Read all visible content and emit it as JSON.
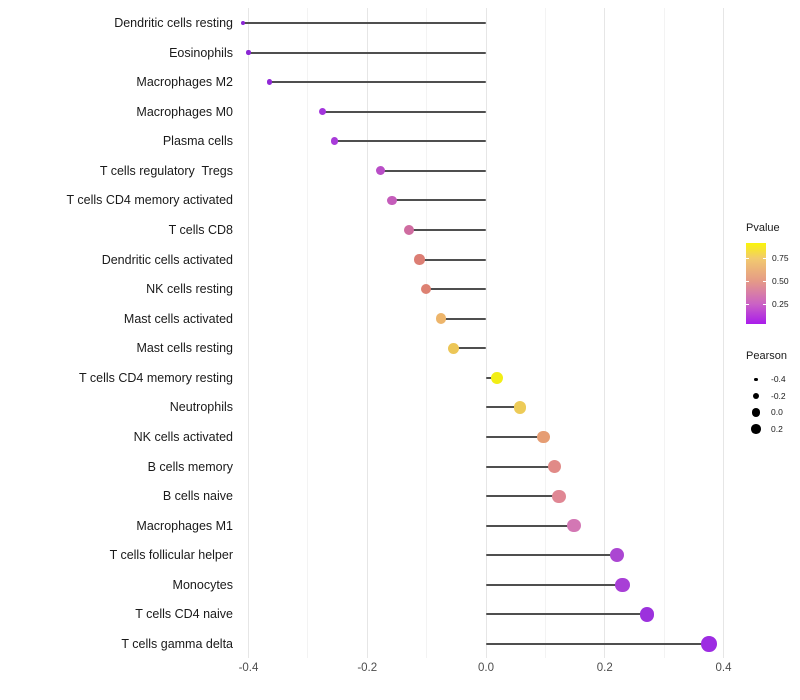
{
  "chart_data": {
    "type": "scatter",
    "variant": "lollipop",
    "title": "",
    "xlabel": "",
    "ylabel": "",
    "xlim": [
      -0.45,
      0.47
    ],
    "baseline_x": 0.0,
    "grid": "on",
    "x_ticks": [
      {
        "value": -0.4,
        "label": "-0.4"
      },
      {
        "value": -0.2,
        "label": "-0.2"
      },
      {
        "value": 0.0,
        "label": "0.0"
      },
      {
        "value": 0.2,
        "label": "0.2"
      },
      {
        "value": 0.4,
        "label": "0.4"
      }
    ],
    "points": [
      {
        "label": "Dendritic cells resting",
        "pearson": -0.41,
        "pvalue_approx": 0.07,
        "color": "#8b27d4"
      },
      {
        "label": "Eosinophils",
        "pearson": -0.4,
        "pvalue_approx": 0.07,
        "color": "#8b27d4"
      },
      {
        "label": "Macrophages M2",
        "pearson": -0.365,
        "pvalue_approx": 0.09,
        "color": "#9129d7"
      },
      {
        "label": "Macrophages M0",
        "pearson": -0.275,
        "pvalue_approx": 0.15,
        "color": "#a335dc"
      },
      {
        "label": "Plasma cells",
        "pearson": -0.255,
        "pvalue_approx": 0.17,
        "color": "#a83bd9"
      },
      {
        "label": "T cells regulatory  Tregs",
        "pearson": -0.177,
        "pvalue_approx": 0.25,
        "color": "#b94ec7"
      },
      {
        "label": "T cells CD4 memory activated",
        "pearson": -0.158,
        "pvalue_approx": 0.3,
        "color": "#c55dbb"
      },
      {
        "label": "T cells CD8",
        "pearson": -0.129,
        "pvalue_approx": 0.37,
        "color": "#cf6ca0"
      },
      {
        "label": "Dendritic cells activated",
        "pearson": -0.112,
        "pvalue_approx": 0.46,
        "color": "#dc7e74"
      },
      {
        "label": "NK cells resting",
        "pearson": -0.101,
        "pvalue_approx": 0.48,
        "color": "#dd8172"
      },
      {
        "label": "Mast cells activated",
        "pearson": -0.076,
        "pvalue_approx": 0.63,
        "color": "#edb56b"
      },
      {
        "label": "Mast cells resting",
        "pearson": -0.055,
        "pvalue_approx": 0.68,
        "color": "#ecc657"
      },
      {
        "label": "T cells CD4 memory resting",
        "pearson": 0.018,
        "pvalue_approx": 0.89,
        "color": "#f2ee15"
      },
      {
        "label": "Neutrophils",
        "pearson": 0.057,
        "pvalue_approx": 0.7,
        "color": "#edcb58"
      },
      {
        "label": "NK cells activated",
        "pearson": 0.097,
        "pvalue_approx": 0.55,
        "color": "#e69d73"
      },
      {
        "label": "B cells memory",
        "pearson": 0.116,
        "pvalue_approx": 0.49,
        "color": "#e18a87"
      },
      {
        "label": "B cells naive",
        "pearson": 0.123,
        "pvalue_approx": 0.47,
        "color": "#e08794"
      },
      {
        "label": "Macrophages M1",
        "pearson": 0.148,
        "pvalue_approx": 0.35,
        "color": "#d377b4"
      },
      {
        "label": "T cells follicular helper",
        "pearson": 0.221,
        "pvalue_approx": 0.22,
        "color": "#ab46d2"
      },
      {
        "label": "Monocytes",
        "pearson": 0.23,
        "pvalue_approx": 0.2,
        "color": "#a83fd6"
      },
      {
        "label": "T cells CD4 naive",
        "pearson": 0.271,
        "pvalue_approx": 0.13,
        "color": "#9c31dd"
      },
      {
        "label": "T cells gamma delta",
        "pearson": 0.376,
        "pvalue_approx": 0.12,
        "color": "#9d2ce2"
      }
    ],
    "legend": {
      "position": "right",
      "pvalue": {
        "title": "Pvalue",
        "range": [
          0.04,
          0.91
        ],
        "ticks": [
          {
            "value": 0.75,
            "label": "0.75"
          },
          {
            "value": 0.5,
            "label": "0.50"
          },
          {
            "value": 0.25,
            "label": "0.25"
          }
        ],
        "gradient": [
          {
            "offset": 0,
            "color": "#a91ceb"
          },
          {
            "offset": 25,
            "color": "#cb63c4"
          },
          {
            "offset": 53,
            "color": "#e59a87"
          },
          {
            "offset": 81,
            "color": "#f2ca6e"
          },
          {
            "offset": 100,
            "color": "#faf50a"
          }
        ]
      },
      "pearson": {
        "title": "Pearson",
        "dot_color": "#000000",
        "entries": [
          {
            "label": "-0.4",
            "diameter": 3.5
          },
          {
            "label": "-0.2",
            "diameter": 6.5
          },
          {
            "label": "0.0",
            "diameter": 8.5
          },
          {
            "label": "0.2",
            "diameter": 9.5
          }
        ]
      }
    },
    "colors": {
      "stem": "#4f4f4f",
      "gridline_major": "#e6e6e6",
      "gridline_minor": "#f3f3f3",
      "label_text": "#1a1a1a",
      "tick_text": "#4d4d4d",
      "background": "#ffffff"
    }
  }
}
